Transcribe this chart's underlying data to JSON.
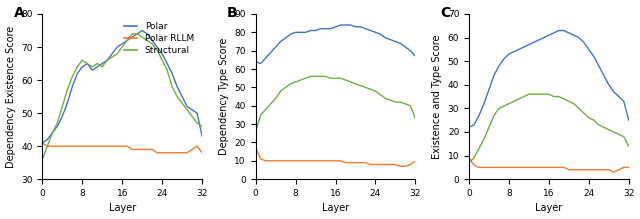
{
  "panel_labels": [
    "A",
    "B",
    "C"
  ],
  "ylabels": [
    "Dependency Existence Score",
    "Dependency Type Score",
    "Existence and Type Score"
  ],
  "xlabel": "Layer",
  "x_ticks": [
    0,
    8,
    16,
    24,
    32
  ],
  "colors": {
    "polar": "#4472C4",
    "polar_rllm": "#ED7D31",
    "structural": "#70AD47"
  },
  "legend_labels": [
    "Polar",
    "Polar RLLM",
    "Structural"
  ],
  "panelA": {
    "polar": [
      41,
      42,
      44,
      46,
      49,
      53,
      58,
      62,
      64,
      65,
      63,
      64,
      65,
      66,
      68,
      70,
      71,
      72,
      73,
      74,
      75,
      74,
      72,
      70,
      68,
      65,
      62,
      58,
      55,
      52,
      51,
      50,
      43
    ],
    "polar_rllm": [
      41,
      40,
      40,
      40,
      40,
      40,
      40,
      40,
      40,
      40,
      40,
      40,
      40,
      40,
      40,
      40,
      40,
      40,
      39,
      39,
      39,
      39,
      39,
      38,
      38,
      38,
      38,
      38,
      38,
      38,
      39,
      40,
      38
    ],
    "structural": [
      36,
      40,
      44,
      47,
      52,
      57,
      61,
      64,
      66,
      65,
      64,
      65,
      64,
      66,
      67,
      68,
      70,
      72,
      74,
      74,
      73,
      72,
      71,
      69,
      66,
      63,
      58,
      55,
      53,
      51,
      49,
      47,
      46
    ],
    "ylim": [
      30,
      80
    ]
  },
  "panelB": {
    "polar": [
      64,
      63,
      66,
      69,
      72,
      75,
      77,
      79,
      80,
      80,
      80,
      81,
      81,
      82,
      82,
      82,
      83,
      84,
      84,
      84,
      83,
      83,
      82,
      81,
      80,
      79,
      77,
      76,
      75,
      74,
      72,
      70,
      67
    ],
    "polar_rllm": [
      17,
      11,
      10,
      10,
      10,
      10,
      10,
      10,
      10,
      10,
      10,
      10,
      10,
      10,
      10,
      10,
      10,
      10,
      9,
      9,
      9,
      9,
      9,
      8,
      8,
      8,
      8,
      8,
      8,
      7,
      7,
      8,
      10
    ],
    "structural": [
      26,
      35,
      38,
      41,
      44,
      48,
      50,
      52,
      53,
      54,
      55,
      56,
      56,
      56,
      56,
      55,
      55,
      55,
      54,
      53,
      52,
      51,
      50,
      49,
      48,
      46,
      44,
      43,
      42,
      42,
      41,
      40,
      33
    ],
    "ylim": [
      0,
      90
    ]
  },
  "panelC": {
    "polar": [
      22,
      23,
      27,
      32,
      38,
      44,
      48,
      51,
      53,
      54,
      55,
      56,
      57,
      58,
      59,
      60,
      61,
      62,
      63,
      63,
      62,
      61,
      60,
      58,
      55,
      52,
      48,
      44,
      40,
      37,
      35,
      33,
      25
    ],
    "polar_rllm": [
      9,
      6,
      5,
      5,
      5,
      5,
      5,
      5,
      5,
      5,
      5,
      5,
      5,
      5,
      5,
      5,
      5,
      5,
      5,
      5,
      4,
      4,
      4,
      4,
      4,
      4,
      4,
      4,
      4,
      3,
      4,
      5,
      5
    ],
    "structural": [
      7,
      9,
      13,
      17,
      22,
      27,
      30,
      31,
      32,
      33,
      34,
      35,
      36,
      36,
      36,
      36,
      36,
      35,
      35,
      34,
      33,
      32,
      30,
      28,
      26,
      25,
      23,
      22,
      21,
      20,
      19,
      18,
      14
    ],
    "ylim": [
      0,
      70
    ]
  }
}
